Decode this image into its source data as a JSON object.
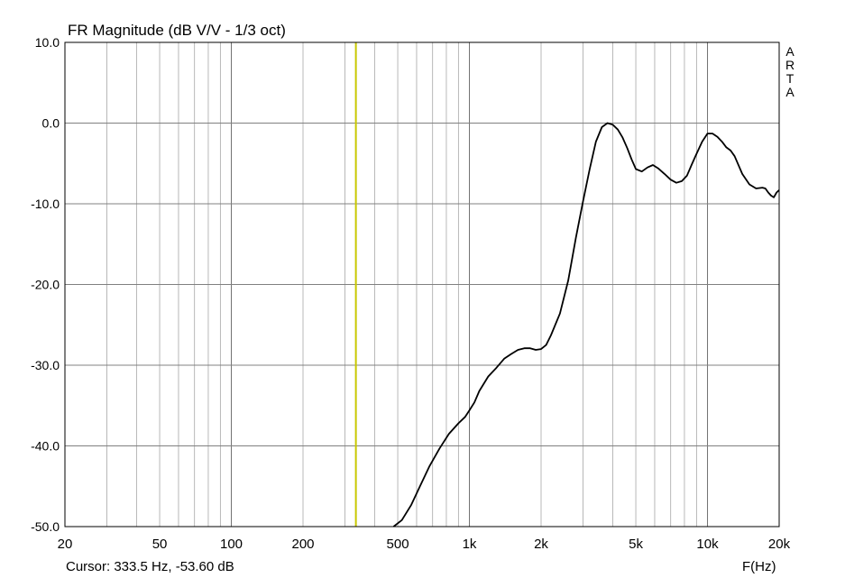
{
  "chart_data": {
    "type": "line",
    "title": "FR Magnitude (dB V/V - 1/3 oct)",
    "xlabel": "F(Hz)",
    "ylabel": "",
    "x_scale": "log",
    "xlim": [
      20,
      20000
    ],
    "ylim": [
      -50,
      10
    ],
    "x_tick_values": [
      20,
      50,
      100,
      200,
      500,
      1000,
      2000,
      5000,
      10000,
      20000
    ],
    "x_tick_labels": [
      "20",
      "50",
      "100",
      "200",
      "500",
      "1k",
      "2k",
      "5k",
      "10k",
      "20k"
    ],
    "y_tick_values": [
      10,
      0,
      -10,
      -20,
      -30,
      -40,
      -50
    ],
    "y_tick_labels": [
      "10.0",
      "0.0",
      "-10.0",
      "-20.0",
      "-30.0",
      "-40.0",
      "-50.0"
    ],
    "grid": true,
    "brand": [
      "A",
      "R",
      "T",
      "A"
    ],
    "cursor": {
      "label": "Cursor: 333.5 Hz, -53.60 dB",
      "x": 333.5,
      "y": -53.6,
      "color": "#c8c800"
    },
    "line_color": "#000000",
    "series": [
      {
        "x": [
          480,
          520,
          570,
          620,
          680,
          750,
          820,
          900,
          960,
          1000,
          1050,
          1100,
          1200,
          1300,
          1400,
          1500,
          1600,
          1700,
          1800,
          1900,
          2000,
          2100,
          2200,
          2400,
          2600,
          2800,
          3000,
          3200,
          3400,
          3600,
          3800,
          4000,
          4200,
          4400,
          4600,
          4800,
          5000,
          5300,
          5600,
          5900,
          6200,
          6600,
          7000,
          7400,
          7800,
          8200,
          8600,
          9000,
          9500,
          10000,
          10500,
          11000,
          11500,
          12000,
          12500,
          13000,
          14000,
          15000,
          16000,
          17000,
          17500,
          18000,
          18500,
          19000,
          19500,
          20000
        ],
        "y": [
          -50.0,
          -49.2,
          -47.3,
          -45.0,
          -42.5,
          -40.3,
          -38.5,
          -37.2,
          -36.4,
          -35.6,
          -34.6,
          -33.2,
          -31.4,
          -30.3,
          -29.2,
          -28.6,
          -28.1,
          -27.9,
          -27.9,
          -28.1,
          -28.0,
          -27.5,
          -26.3,
          -23.6,
          -19.5,
          -14.2,
          -9.7,
          -5.7,
          -2.3,
          -0.5,
          0.0,
          -0.2,
          -0.8,
          -1.8,
          -3.1,
          -4.5,
          -5.7,
          -6.0,
          -5.5,
          -5.2,
          -5.6,
          -6.3,
          -7.0,
          -7.4,
          -7.2,
          -6.5,
          -5.1,
          -3.8,
          -2.3,
          -1.3,
          -1.3,
          -1.7,
          -2.3,
          -3.0,
          -3.4,
          -4.1,
          -6.3,
          -7.6,
          -8.1,
          -8.0,
          -8.1,
          -8.6,
          -9.0,
          -9.2,
          -8.6,
          -8.3
        ]
      }
    ]
  }
}
